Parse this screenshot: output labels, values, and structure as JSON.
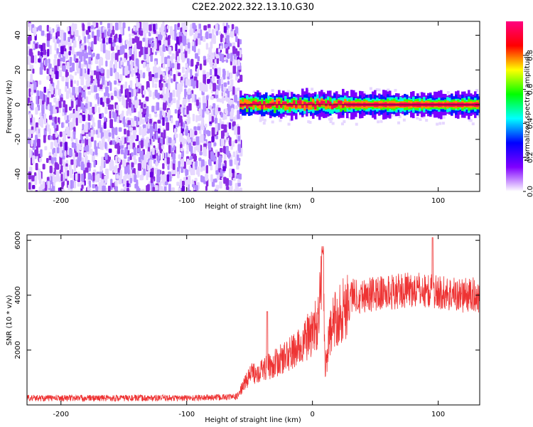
{
  "title": "C2E2.2022.322.13.10.G30",
  "colors": {
    "scatter_noise": "#8a2be2",
    "snr_line": "#ee3333",
    "axis": "#000000"
  },
  "chart_data": [
    {
      "type": "heatmap",
      "xlabel": "Height of straight line (km)",
      "ylabel": "Frequency (Hz)",
      "xlim": [
        -227,
        133
      ],
      "ylim": [
        -50,
        48
      ],
      "x_ticks": [
        -200,
        -100,
        0,
        100
      ],
      "y_ticks": [
        -40,
        -20,
        0,
        20,
        40
      ],
      "colorbar": {
        "label": "Normalized spectral amplitude",
        "range": [
          0,
          1
        ],
        "ticks": [
          0.0,
          0.2,
          0.4,
          0.6,
          0.8
        ],
        "colormap": [
          "#ffffff",
          "#8000ff",
          "#0000ff",
          "#00ffff",
          "#00ff00",
          "#ffff00",
          "#ff0000",
          "#ff0080"
        ]
      },
      "regions": [
        {
          "description_x": [
            -227,
            -58
          ],
          "frequency_range": [
            -50,
            48
          ],
          "amplitude_level": 0.1
        },
        {
          "description_x": [
            -58,
            133
          ],
          "frequency_center": 0,
          "frequency_halfwidth": 3,
          "amplitude_level": 0.95
        }
      ]
    },
    {
      "type": "line",
      "xlabel": "Height of straight line (km)",
      "ylabel": "SNR (10 * v/v)",
      "xlim": [
        -227,
        133
      ],
      "ylim": [
        0,
        6200
      ],
      "x_ticks": [
        -200,
        -100,
        0,
        100
      ],
      "y_ticks": [
        2000,
        4000,
        6000
      ],
      "series": [
        {
          "x": [
            -227,
            -200,
            -150,
            -100,
            -70,
            -60,
            -55,
            -50,
            -40,
            -30,
            -20,
            -10,
            0,
            5,
            8,
            10,
            15,
            20,
            25,
            30,
            40,
            60,
            80,
            100,
            120,
            133
          ],
          "y": [
            250,
            250,
            250,
            250,
            280,
            300,
            700,
            1100,
            1300,
            1500,
            1800,
            2100,
            2700,
            3000,
            5800,
            1400,
            2800,
            3300,
            3500,
            4000,
            4000,
            4100,
            4200,
            4100,
            4000,
            4000
          ]
        }
      ]
    }
  ]
}
